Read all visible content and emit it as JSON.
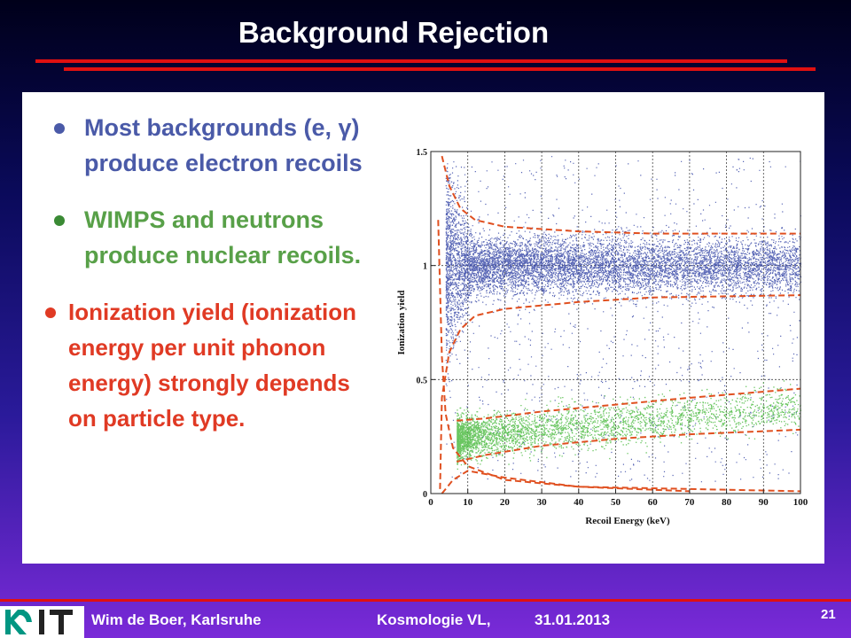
{
  "slide": {
    "title": "Background Rejection"
  },
  "bullets": [
    {
      "line1": "Most backgrounds (e, γ)",
      "line2": "produce electron recoils",
      "color": "#4a5aa8"
    },
    {
      "line1": "WIMPS and neutrons",
      "line2": "produce nuclear recoils.",
      "color": "#58a048"
    },
    {
      "line1": "Ionization yield (ionization",
      "line2": "energy per unit phonon",
      "line3": "energy) strongly depends",
      "line4": "on particle type.",
      "color": "#e03a24"
    }
  ],
  "chart_data": {
    "type": "scatter",
    "xlabel": "Recoil Energy (keV)",
    "ylabel": "Ionization yield",
    "xlim": [
      0,
      100
    ],
    "ylim": [
      0,
      1.5
    ],
    "x_ticks": [
      "0",
      "10",
      "20",
      "30",
      "40",
      "50",
      "60",
      "70",
      "80",
      "90",
      "100"
    ],
    "y_ticks": [
      "0",
      "0.5",
      "1",
      "1.5"
    ],
    "grid": true,
    "series": [
      {
        "label": "electron recoils",
        "color": "#3a4aa8",
        "y_center": 1.0,
        "y_spread": 0.06,
        "x_range": [
          4,
          100
        ]
      },
      {
        "label": "nuclear recoils",
        "color": "#5ac050",
        "y_center_at_10keV": 0.25,
        "y_center_at_100keV": 0.38,
        "x_range": [
          7,
          100
        ]
      }
    ],
    "bands": [
      {
        "label": "electron-recoil band upper",
        "color": "#e05020",
        "points": [
          [
            3,
            1.48
          ],
          [
            5,
            1.35
          ],
          [
            8,
            1.25
          ],
          [
            12,
            1.2
          ],
          [
            20,
            1.17
          ],
          [
            40,
            1.15
          ],
          [
            60,
            1.14
          ],
          [
            100,
            1.14
          ]
        ]
      },
      {
        "label": "electron-recoil band lower",
        "color": "#e05020",
        "points": [
          [
            2.5,
            0.02
          ],
          [
            3,
            0.42
          ],
          [
            5,
            0.62
          ],
          [
            8,
            0.72
          ],
          [
            12,
            0.78
          ],
          [
            20,
            0.81
          ],
          [
            40,
            0.84
          ],
          [
            60,
            0.86
          ],
          [
            100,
            0.87
          ]
        ]
      },
      {
        "label": "nuclear-recoil band upper",
        "color": "#e05020",
        "points": [
          [
            7,
            0.32
          ],
          [
            15,
            0.33
          ],
          [
            30,
            0.36
          ],
          [
            50,
            0.39
          ],
          [
            70,
            0.42
          ],
          [
            100,
            0.46
          ]
        ]
      },
      {
        "label": "nuclear-recoil band lower",
        "color": "#e05020",
        "points": [
          [
            7,
            0.14
          ],
          [
            15,
            0.17
          ],
          [
            30,
            0.21
          ],
          [
            50,
            0.24
          ],
          [
            70,
            0.26
          ],
          [
            100,
            0.28
          ]
        ]
      },
      {
        "label": "threshold upper",
        "color": "#e05020",
        "points": [
          [
            2,
            1.2
          ],
          [
            3,
            0.6
          ],
          [
            4,
            0.35
          ],
          [
            6,
            0.2
          ],
          [
            10,
            0.12
          ],
          [
            20,
            0.06
          ],
          [
            40,
            0.03
          ],
          [
            100,
            0.01
          ]
        ]
      },
      {
        "label": "threshold lower",
        "color": "#e05020",
        "points": [
          [
            3,
            0.0
          ],
          [
            4,
            0.02
          ],
          [
            6,
            0.06
          ],
          [
            10,
            0.1
          ],
          [
            20,
            0.07
          ],
          [
            40,
            0.03
          ],
          [
            70,
            0.01
          ]
        ]
      }
    ]
  },
  "footer": {
    "author": "Wim de Boer, Karlsruhe",
    "course": "Kosmologie VL,",
    "date": "31.01.2013",
    "page": "21"
  }
}
